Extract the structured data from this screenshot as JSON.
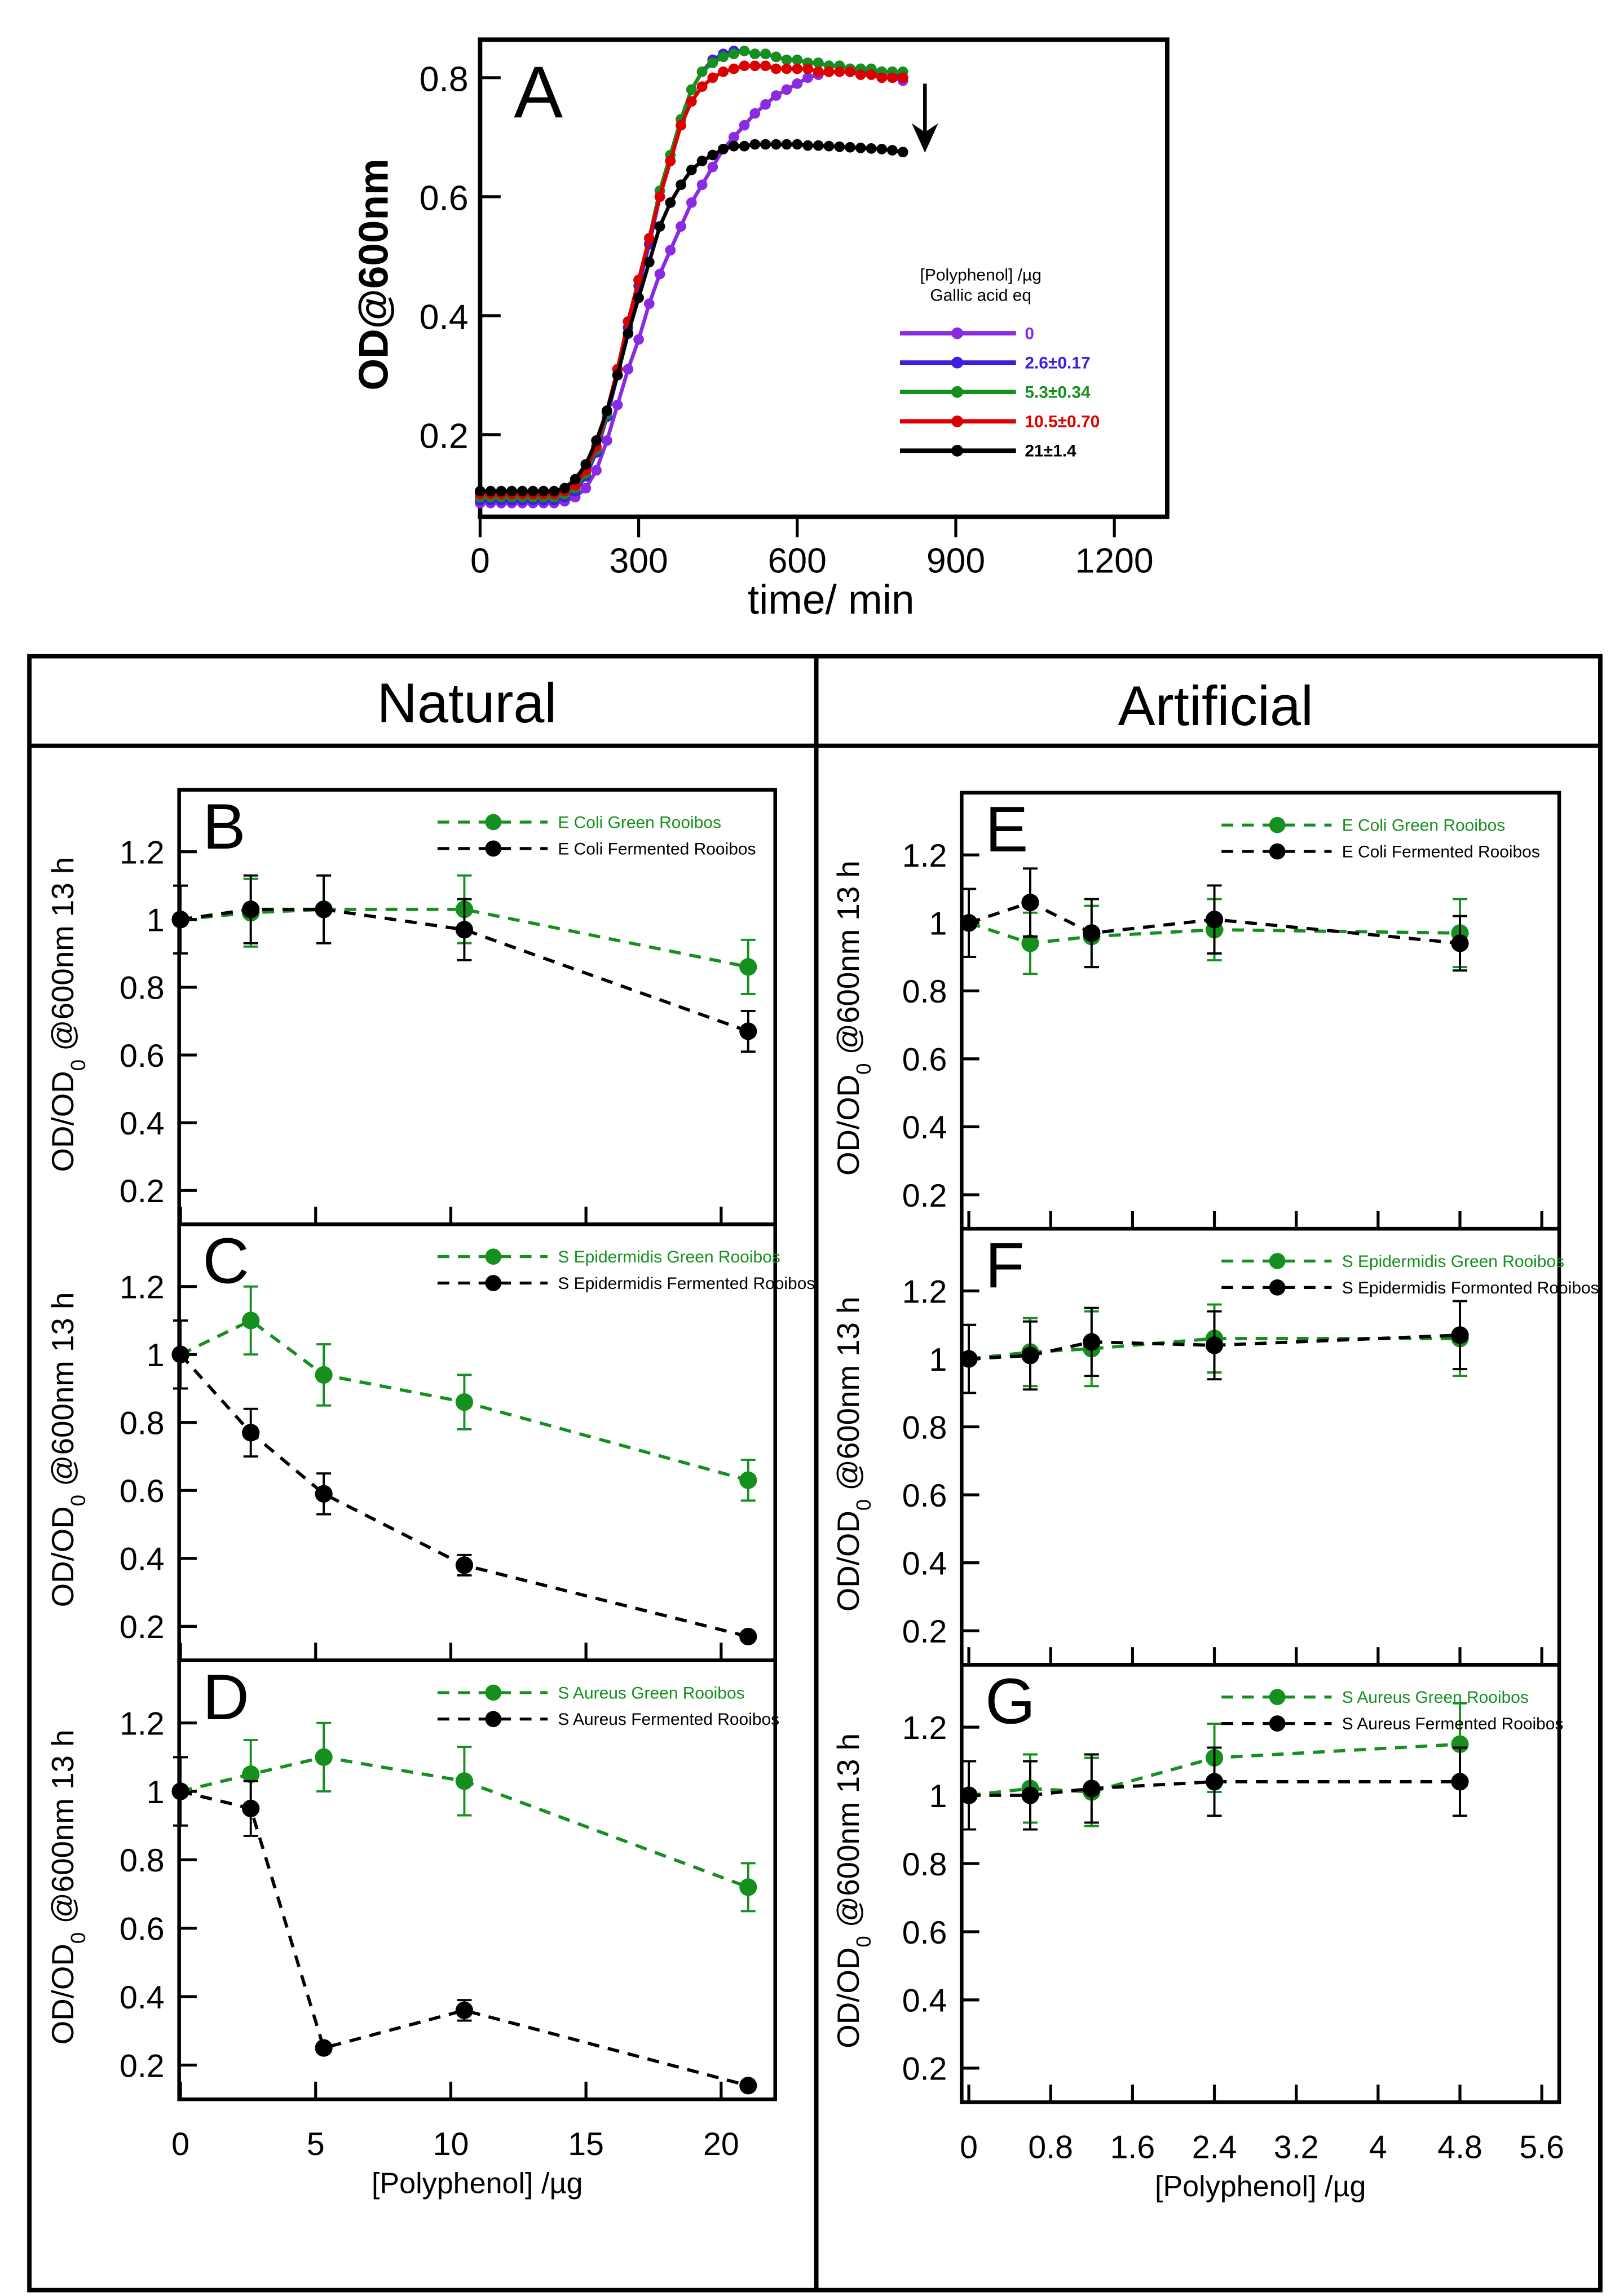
{
  "headers": {
    "left": "Natural",
    "right": "Artificial"
  },
  "colors": {
    "purple": "#8a2be2",
    "blue": "#3a1fe0",
    "green": "#15901e",
    "red": "#dd0000",
    "black": "#000000"
  },
  "chart_data": [
    {
      "id": "A",
      "type": "line",
      "letter": "A",
      "xlabel": "time/ min",
      "ylabel": "OD@600nm",
      "xlim": [
        0,
        1300
      ],
      "ylim": [
        0.062,
        0.864
      ],
      "xticks": [
        0,
        300,
        600,
        900,
        1200
      ],
      "xtick_labels": [
        "0",
        "300",
        "600",
        "900",
        "1200"
      ],
      "yticks": [
        0.2,
        0.4,
        0.6,
        0.8
      ],
      "ytick_labels": [
        "0.2",
        "0.4",
        "0.6",
        "0.8"
      ],
      "legend_title": [
        "[Polyphenol] /µg",
        "Gallic acid eq"
      ],
      "legend_position": "right",
      "annotation": "downward arrow",
      "x": [
        0,
        20,
        40,
        60,
        80,
        100,
        120,
        140,
        160,
        180,
        200,
        220,
        240,
        260,
        280,
        300,
        320,
        340,
        360,
        380,
        400,
        420,
        440,
        460,
        480,
        500,
        520,
        540,
        560,
        580,
        600,
        620,
        640,
        660,
        680,
        700,
        720,
        740,
        760,
        780,
        800
      ],
      "series": [
        {
          "name": "0",
          "color": "#8a2be2",
          "values": [
            0.085,
            0.085,
            0.085,
            0.085,
            0.085,
            0.085,
            0.085,
            0.085,
            0.088,
            0.095,
            0.11,
            0.14,
            0.19,
            0.25,
            0.31,
            0.36,
            0.42,
            0.47,
            0.51,
            0.55,
            0.59,
            0.62,
            0.65,
            0.68,
            0.7,
            0.72,
            0.74,
            0.755,
            0.77,
            0.78,
            0.79,
            0.8,
            0.805,
            0.81,
            0.81,
            0.81,
            0.81,
            0.81,
            0.805,
            0.8,
            0.795
          ]
        },
        {
          "name": "2.6±0.17",
          "color": "#3a1fe0",
          "values": [
            0.09,
            0.09,
            0.09,
            0.09,
            0.09,
            0.09,
            0.09,
            0.09,
            0.095,
            0.105,
            0.13,
            0.17,
            0.23,
            0.3,
            0.38,
            0.45,
            0.52,
            0.6,
            0.66,
            0.73,
            0.78,
            0.81,
            0.83,
            0.84,
            0.845,
            0.845,
            0.84,
            0.84,
            0.835,
            0.83,
            0.83,
            0.825,
            0.825,
            0.82,
            0.82,
            0.815,
            0.815,
            0.81,
            0.81,
            0.81,
            0.8
          ]
        },
        {
          "name": "5.3±0.34",
          "color": "#15901e",
          "values": [
            0.095,
            0.095,
            0.095,
            0.095,
            0.095,
            0.095,
            0.095,
            0.095,
            0.1,
            0.11,
            0.135,
            0.175,
            0.235,
            0.31,
            0.39,
            0.46,
            0.53,
            0.61,
            0.67,
            0.73,
            0.78,
            0.81,
            0.825,
            0.835,
            0.84,
            0.845,
            0.84,
            0.84,
            0.835,
            0.83,
            0.83,
            0.825,
            0.825,
            0.82,
            0.82,
            0.815,
            0.815,
            0.815,
            0.81,
            0.81,
            0.81
          ]
        },
        {
          "name": "10.5±0.70",
          "color": "#dd0000",
          "values": [
            0.1,
            0.1,
            0.1,
            0.1,
            0.1,
            0.1,
            0.1,
            0.1,
            0.105,
            0.115,
            0.14,
            0.18,
            0.24,
            0.31,
            0.39,
            0.46,
            0.53,
            0.6,
            0.66,
            0.72,
            0.76,
            0.785,
            0.8,
            0.81,
            0.815,
            0.82,
            0.82,
            0.82,
            0.815,
            0.815,
            0.815,
            0.815,
            0.81,
            0.81,
            0.81,
            0.81,
            0.805,
            0.805,
            0.8,
            0.8,
            0.8
          ]
        },
        {
          "name": "21±1.4",
          "color": "#000000",
          "values": [
            0.105,
            0.105,
            0.105,
            0.105,
            0.105,
            0.105,
            0.105,
            0.105,
            0.11,
            0.125,
            0.15,
            0.19,
            0.24,
            0.3,
            0.37,
            0.43,
            0.49,
            0.55,
            0.59,
            0.62,
            0.645,
            0.66,
            0.67,
            0.68,
            0.685,
            0.685,
            0.688,
            0.688,
            0.688,
            0.688,
            0.688,
            0.686,
            0.686,
            0.685,
            0.684,
            0.683,
            0.682,
            0.681,
            0.68,
            0.678,
            0.675
          ]
        }
      ]
    },
    {
      "id": "B",
      "type": "line",
      "letter": "B",
      "column": "left",
      "ylabel": [
        "OD/OD",
        "0",
        " @600nm 13 h"
      ],
      "xlabel": "",
      "xlim": [
        -0.05,
        22.0
      ],
      "ylim": [
        0.1,
        1.383
      ],
      "x": [
        0,
        2.6,
        5.3,
        10.5,
        21
      ],
      "series": [
        {
          "name": "E Coli Green Rooibos",
          "color": "#15901e",
          "values": [
            1,
            1.02,
            1.03,
            1.03,
            0.86
          ],
          "errors": [
            0.1,
            0.1,
            0.1,
            0.1,
            0.08
          ]
        },
        {
          "name": "E Coli Fermented Rooibos",
          "color": "#000000",
          "values": [
            1,
            1.03,
            1.03,
            0.97,
            0.67
          ],
          "errors": [
            0.1,
            0.1,
            0.1,
            0.09,
            0.06
          ]
        }
      ]
    },
    {
      "id": "C",
      "type": "line",
      "letter": "C",
      "column": "left",
      "ylabel": [
        "OD/OD",
        "0",
        " @600nm 13 h"
      ],
      "xlabel": "",
      "xlim": [
        -0.05,
        22.0
      ],
      "ylim": [
        0.1,
        1.383
      ],
      "x": [
        0,
        2.6,
        5.3,
        10.5,
        21
      ],
      "series": [
        {
          "name": "S Epidermidis Green Rooibos",
          "color": "#15901e",
          "values": [
            1,
            1.1,
            0.94,
            0.86,
            0.63
          ],
          "errors": [
            0.1,
            0.1,
            0.09,
            0.08,
            0.06
          ]
        },
        {
          "name": "S Epidermidis Fermented Rooibos",
          "color": "#000000",
          "values": [
            1,
            0.77,
            0.59,
            0.38,
            0.17
          ],
          "errors": [
            0.1,
            0.07,
            0.06,
            0.03,
            0
          ]
        }
      ]
    },
    {
      "id": "D",
      "type": "line",
      "letter": "D",
      "column": "left",
      "ylabel": [
        "OD/OD",
        "0",
        " @600nm 13 h"
      ],
      "xlabel": "[Polyphenol] /µg",
      "xticks": [
        0,
        5,
        10,
        15,
        20
      ],
      "xtick_labels": [
        "0",
        "5",
        "10",
        "15",
        "20"
      ],
      "xlim": [
        -0.05,
        22.0
      ],
      "ylim": [
        0.1,
        1.383
      ],
      "x": [
        0,
        2.6,
        5.3,
        10.5,
        21
      ],
      "series": [
        {
          "name": "S Aureus Green Rooibos",
          "color": "#15901e",
          "values": [
            1,
            1.05,
            1.1,
            1.03,
            0.72
          ],
          "errors": [
            0.1,
            0.1,
            0.1,
            0.1,
            0.07
          ]
        },
        {
          "name": "S Aureus Fermented Rooibos",
          "color": "#000000",
          "values": [
            1,
            0.95,
            0.25,
            0.36,
            0.14
          ],
          "errors": [
            0.1,
            0.08,
            0,
            0.03,
            0
          ]
        }
      ]
    },
    {
      "id": "E",
      "type": "line",
      "letter": "E",
      "column": "right",
      "ylabel": [
        "OD/OD",
        "0",
        " @600nm 13 h"
      ],
      "xlabel": "",
      "xlim": [
        -0.07,
        5.77
      ],
      "ylim": [
        0.1,
        1.383
      ],
      "x": [
        0,
        0.6,
        1.2,
        2.4,
        4.8
      ],
      "series": [
        {
          "name": "E Coli Green Rooibos",
          "color": "#15901e",
          "values": [
            1,
            0.94,
            0.96,
            0.98,
            0.97
          ],
          "errors": [
            0.1,
            0.09,
            0.09,
            0.09,
            0.1
          ]
        },
        {
          "name": "E Coli Fermented Rooibos",
          "color": "#000000",
          "values": [
            1,
            1.06,
            0.97,
            1.01,
            0.94
          ],
          "errors": [
            0.1,
            0.1,
            0.1,
            0.1,
            0.08
          ]
        }
      ]
    },
    {
      "id": "F",
      "type": "line",
      "letter": "F",
      "column": "right",
      "ylabel": [
        "OD/OD",
        "0",
        " @600nm 13 h"
      ],
      "xlabel": "",
      "xlim": [
        -0.07,
        5.77
      ],
      "ylim": [
        0.1,
        1.383
      ],
      "x": [
        0,
        0.6,
        1.2,
        2.4,
        4.8
      ],
      "series": [
        {
          "name": "S Epidermidis Green Rooibos",
          "color": "#15901e",
          "values": [
            1,
            1.02,
            1.03,
            1.06,
            1.06
          ],
          "errors": [
            0.1,
            0.1,
            0.11,
            0.1,
            0.11
          ]
        },
        {
          "name": "S Epidermidis Formonted Rooibos",
          "color": "#000000",
          "values": [
            1,
            1.01,
            1.05,
            1.04,
            1.07
          ],
          "errors": [
            0.1,
            0.1,
            0.1,
            0.1,
            0.1
          ]
        }
      ]
    },
    {
      "id": "G",
      "type": "line",
      "letter": "G",
      "column": "right",
      "ylabel": [
        "OD/OD",
        "0",
        " @600nm 13 h"
      ],
      "xlabel": "[Polyphenol] /µg",
      "xticks": [
        0,
        0.8,
        1.6,
        2.4,
        3.2,
        4,
        4.8,
        5.6
      ],
      "xtick_labels": [
        "0",
        "0.8",
        "1.6",
        "2.4",
        "3.2",
        "4",
        "4.8",
        "5.6"
      ],
      "xlim": [
        -0.07,
        5.77
      ],
      "ylim": [
        0.1,
        1.383
      ],
      "x": [
        0,
        0.6,
        1.2,
        2.4,
        4.8
      ],
      "series": [
        {
          "name": "S Aureus Green Rooibos",
          "color": "#15901e",
          "values": [
            1,
            1.02,
            1.01,
            1.11,
            1.15
          ],
          "errors": [
            0.1,
            0.1,
            0.1,
            0.1,
            0.12
          ]
        },
        {
          "name": "S Aureus Fermented Rooibos",
          "color": "#000000",
          "values": [
            1,
            1.0,
            1.02,
            1.04,
            1.04
          ],
          "errors": [
            0.1,
            0.1,
            0.1,
            0.1,
            0.1
          ]
        }
      ]
    }
  ],
  "panel_yticks": [
    0.2,
    0.4,
    0.6,
    0.8,
    1,
    1.2
  ],
  "panel_ytick_labels": [
    "0.2",
    "0.4",
    "0.6",
    "0.8",
    "1",
    "1.2"
  ],
  "left_xticks": [
    0,
    5,
    10,
    15,
    20
  ],
  "right_xticks": [
    0,
    0.8,
    1.6,
    2.4,
    3.2,
    4,
    4.8,
    5.6
  ]
}
